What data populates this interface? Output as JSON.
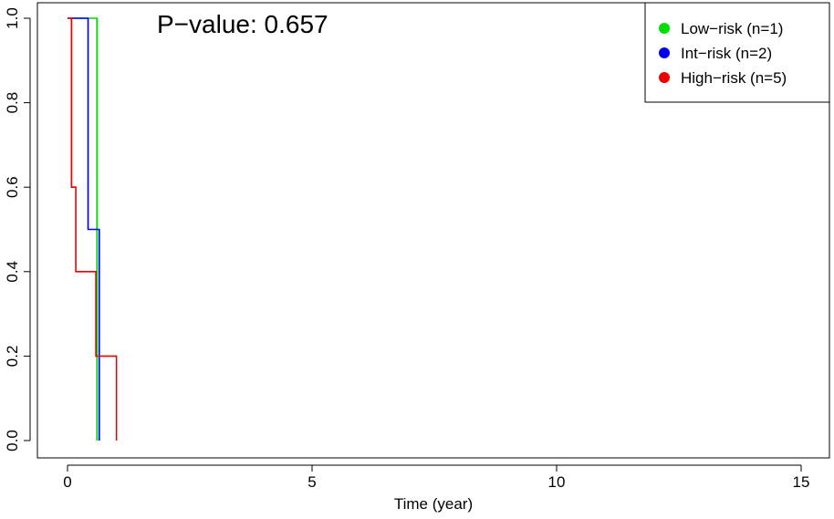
{
  "chart_data": {
    "type": "line",
    "subtype": "step",
    "annotation": "P−value: 0.657",
    "xlabel": "Time (year)",
    "ylabel": "",
    "xlim": [
      0,
      15
    ],
    "ylim": [
      0,
      1
    ],
    "x_ticks": [
      0,
      5,
      10,
      15
    ],
    "x_tick_labels": [
      "0",
      "5",
      "10",
      "15"
    ],
    "y_ticks": [
      0.0,
      0.2,
      0.4,
      0.6,
      0.8,
      1.0
    ],
    "y_tick_labels": [
      "0.0",
      "0.2",
      "0.4",
      "0.6",
      "0.8",
      "1.0"
    ],
    "grid": false,
    "legend_position": "top-right",
    "series": [
      {
        "name": "Low−risk (n=1)",
        "color": "#00dd00",
        "points": [
          [
            0.0,
            1.0
          ],
          [
            0.6,
            1.0
          ],
          [
            0.6,
            0.0
          ]
        ]
      },
      {
        "name": "Int−risk (n=2)",
        "color": "#0000ee",
        "points": [
          [
            0.0,
            1.0
          ],
          [
            0.42,
            1.0
          ],
          [
            0.42,
            0.5
          ],
          [
            0.65,
            0.5
          ],
          [
            0.65,
            0.0
          ]
        ]
      },
      {
        "name": "High−risk (n=5)",
        "color": "#ee0000",
        "points": [
          [
            0.0,
            1.0
          ],
          [
            0.08,
            1.0
          ],
          [
            0.08,
            0.6
          ],
          [
            0.17,
            0.6
          ],
          [
            0.17,
            0.4
          ],
          [
            0.58,
            0.4
          ],
          [
            0.58,
            0.2
          ],
          [
            1.0,
            0.2
          ],
          [
            1.0,
            0.0
          ]
        ]
      }
    ]
  }
}
